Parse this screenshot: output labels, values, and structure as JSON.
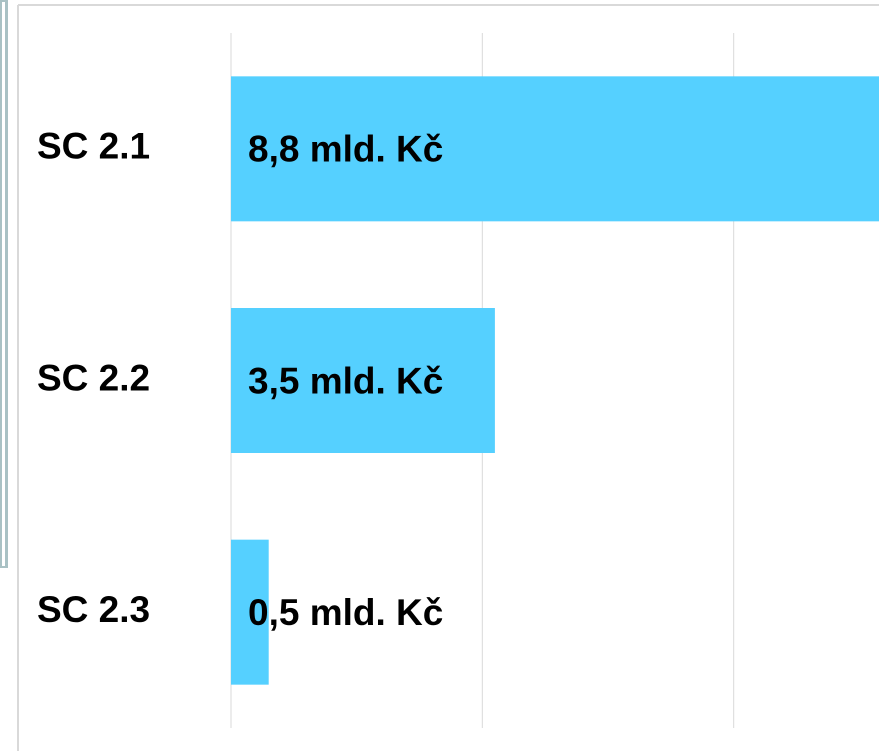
{
  "chart_data": {
    "type": "bar",
    "orientation": "horizontal",
    "categories": [
      "SC 2.1",
      "SC 2.2",
      "SC 2.3"
    ],
    "values": [
      8.8,
      3.5,
      0.5
    ],
    "data_labels": [
      "8,8 mld. Kč",
      "3,5 mld. Kč",
      "0,5 mld. Kč"
    ],
    "unit": "mld. Kč",
    "xlim": [
      0,
      10
    ],
    "grid": true,
    "legend": "none",
    "colors": {
      "bar": "#55d0ff",
      "grid": "#d9d9d9",
      "text": "#000000",
      "frame": "#8aa8ad"
    }
  }
}
